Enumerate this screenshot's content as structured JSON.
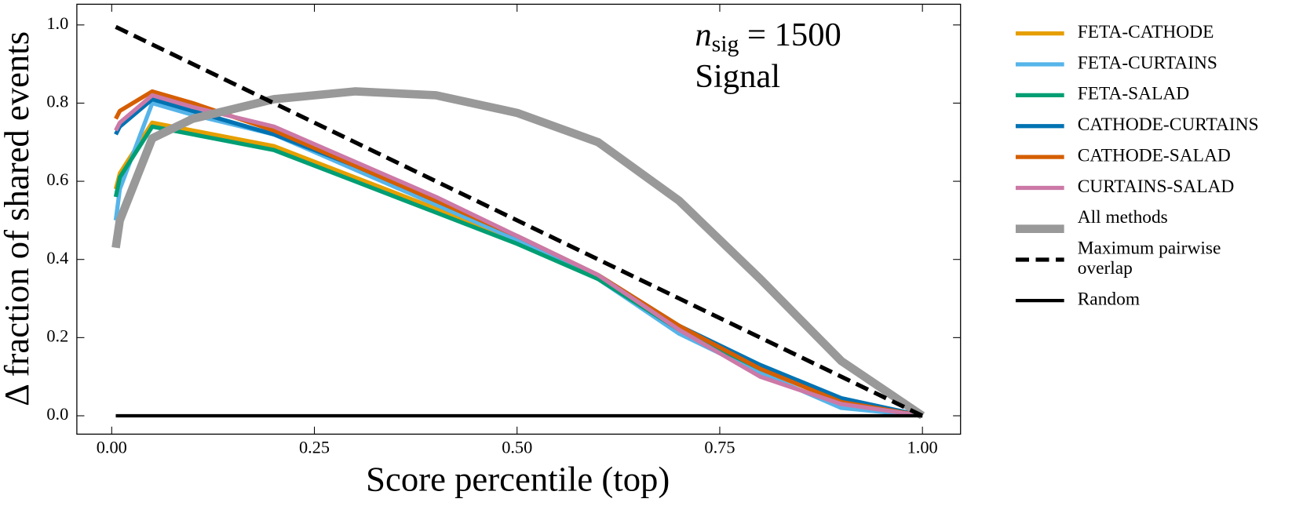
{
  "chart_data": {
    "type": "line",
    "xlabel": "Score percentile (top)",
    "ylabel": "Δ fraction of shared events",
    "annotation": {
      "symbol": "n",
      "subscript": "sig",
      "equation": "= 1500",
      "line2": "Signal"
    },
    "x": [
      0.005,
      0.01,
      0.05,
      0.1,
      0.2,
      0.3,
      0.4,
      0.5,
      0.6,
      0.7,
      0.8,
      0.9,
      1.0
    ],
    "xlim": [
      -0.043,
      1.047
    ],
    "ylim": [
      -0.047,
      1.053
    ],
    "xticks": [
      {
        "value": 0,
        "label": "0.00"
      },
      {
        "value": 0.25,
        "label": "0.25"
      },
      {
        "value": 0.5,
        "label": "0.50"
      },
      {
        "value": 0.75,
        "label": "0.75"
      },
      {
        "value": 1,
        "label": "1.00"
      }
    ],
    "yticks": [
      {
        "value": 0,
        "label": "0.0"
      },
      0.2,
      0.4,
      0.6,
      0.8,
      {
        "value": 1,
        "label": "1.0"
      }
    ],
    "legend": "outside right",
    "series": [
      {
        "name": "FETA-CATHODE",
        "color": "#E69F00",
        "linewidth": 5,
        "linestyle": "solid",
        "values": [
          0.58,
          0.62,
          0.75,
          0.73,
          0.69,
          0.61,
          0.53,
          0.45,
          0.36,
          0.23,
          0.12,
          0.04,
          0.0
        ]
      },
      {
        "name": "FETA-CURTAINS",
        "color": "#56B4E9",
        "linewidth": 5,
        "linestyle": "solid",
        "values": [
          0.5,
          0.58,
          0.8,
          0.77,
          0.72,
          0.63,
          0.54,
          0.45,
          0.35,
          0.21,
          0.11,
          0.02,
          0.0
        ]
      },
      {
        "name": "FETA-SALAD",
        "color": "#009E73",
        "linewidth": 5,
        "linestyle": "solid",
        "values": [
          0.56,
          0.61,
          0.74,
          0.72,
          0.68,
          0.6,
          0.52,
          0.44,
          0.35,
          0.22,
          0.12,
          0.04,
          0.0
        ]
      },
      {
        "name": "CATHODE-CURTAINS",
        "color": "#0072B2",
        "linewidth": 5,
        "linestyle": "solid",
        "values": [
          0.72,
          0.74,
          0.81,
          0.78,
          0.72,
          0.64,
          0.55,
          0.46,
          0.36,
          0.23,
          0.13,
          0.045,
          0.0
        ]
      },
      {
        "name": "CATHODE-SALAD",
        "color": "#D55E00",
        "linewidth": 5,
        "linestyle": "solid",
        "values": [
          0.76,
          0.78,
          0.83,
          0.8,
          0.73,
          0.64,
          0.55,
          0.46,
          0.36,
          0.23,
          0.12,
          0.035,
          0.0
        ]
      },
      {
        "name": "CURTAINS-SALAD",
        "color": "#CC79A7",
        "linewidth": 5,
        "linestyle": "solid",
        "values": [
          0.73,
          0.75,
          0.82,
          0.79,
          0.74,
          0.65,
          0.56,
          0.46,
          0.36,
          0.22,
          0.1,
          0.03,
          0.0
        ]
      },
      {
        "name": "All methods",
        "color": "#999999",
        "linewidth": 10,
        "linestyle": "solid",
        "values": [
          0.43,
          0.5,
          0.71,
          0.76,
          0.81,
          0.83,
          0.82,
          0.775,
          0.7,
          0.55,
          0.35,
          0.14,
          0.0
        ]
      },
      {
        "name": "Maximum pairwise overlap",
        "color": "#000000",
        "linewidth": 5,
        "linestyle": "dashed",
        "values": [
          0.995,
          0.99,
          0.95,
          0.9,
          0.8,
          0.7,
          0.6,
          0.5,
          0.4,
          0.3,
          0.2,
          0.1,
          0.0
        ]
      },
      {
        "name": "Random",
        "color": "#000000",
        "linewidth": 4,
        "linestyle": "solid",
        "values": [
          0,
          0,
          0,
          0,
          0,
          0,
          0,
          0,
          0,
          0,
          0,
          0,
          0
        ]
      }
    ]
  }
}
